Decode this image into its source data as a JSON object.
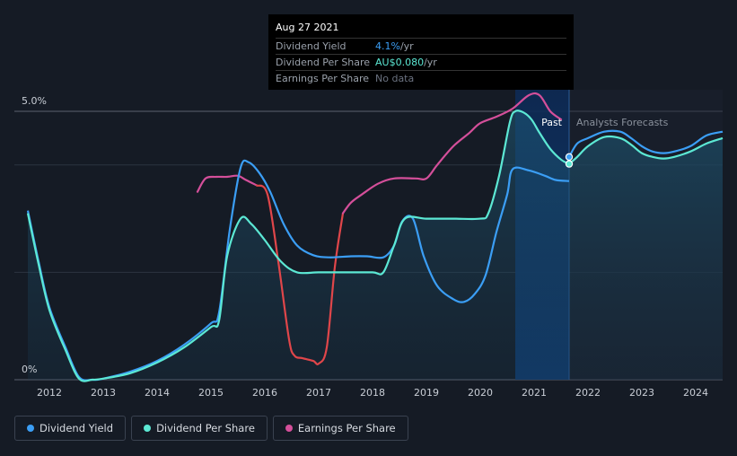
{
  "tooltip": {
    "date": "Aug 27 2021",
    "rows": [
      {
        "label": "Dividend Yield",
        "value": "4.1%",
        "unit": " /yr"
      },
      {
        "label": "Dividend Per Share",
        "value": "AU$0.080",
        "unit": " /yr"
      },
      {
        "label": "Earnings Per Share",
        "value": "No data",
        "unit": ""
      }
    ]
  },
  "regions": {
    "past": "Past",
    "forecast": "Analysts Forecasts"
  },
  "legend": [
    {
      "label": "Dividend Yield",
      "color": "#3b9ef5"
    },
    {
      "label": "Dividend Per Share",
      "color": "#5ce8d4"
    },
    {
      "label": "Earnings Per Share",
      "color": "#d44f9a"
    }
  ],
  "chart_data": {
    "type": "line",
    "xlim": [
      2011.35,
      2024.5
    ],
    "ylim": [
      0,
      5.0
    ],
    "y_tick_labels": [
      {
        "value": 5.0,
        "label": "5.0%"
      },
      {
        "value": 0,
        "label": "0%"
      }
    ],
    "x_tick_labels": [
      "2012",
      "2013",
      "2014",
      "2015",
      "2016",
      "2017",
      "2018",
      "2019",
      "2020",
      "2021",
      "2022",
      "2023",
      "2024"
    ],
    "past_end": 2021.65,
    "highlight_start": 2020.65,
    "series": [
      {
        "name": "Dividend Yield",
        "color": "#3b9ef5",
        "x": [
          2011.6,
          2011.8,
          2012.0,
          2012.3,
          2012.55,
          2012.8,
          2013.0,
          2013.5,
          2014.0,
          2014.5,
          2015.0,
          2015.15,
          2015.35,
          2015.55,
          2015.7,
          2015.9,
          2016.1,
          2016.35,
          2016.6,
          2016.9,
          2017.2,
          2017.6,
          2017.9,
          2018.2,
          2018.4,
          2018.55,
          2018.75,
          2018.95,
          2019.2,
          2019.5,
          2019.7,
          2019.9,
          2020.1,
          2020.3,
          2020.5,
          2020.6,
          2020.9,
          2021.2,
          2021.4,
          2021.65
        ],
        "y": [
          3.15,
          2.2,
          1.35,
          0.6,
          0.05,
          0.0,
          0.02,
          0.15,
          0.35,
          0.65,
          1.05,
          1.25,
          2.8,
          3.95,
          4.05,
          3.85,
          3.5,
          2.9,
          2.5,
          2.32,
          2.28,
          2.3,
          2.3,
          2.28,
          2.5,
          2.95,
          3.0,
          2.3,
          1.75,
          1.5,
          1.45,
          1.6,
          1.95,
          2.75,
          3.45,
          3.92,
          3.9,
          3.8,
          3.72,
          3.7
        ]
      },
      {
        "name": "Dividend Per Share",
        "color": "#5ce8d4",
        "x": [
          2011.6,
          2011.8,
          2012.0,
          2012.3,
          2012.55,
          2012.8,
          2013.0,
          2013.5,
          2014.0,
          2014.5,
          2015.0,
          2015.15,
          2015.3,
          2015.55,
          2015.75,
          2016.0,
          2016.3,
          2016.6,
          2017.0,
          2017.5,
          2018.0,
          2018.2,
          2018.4,
          2018.6,
          2019.0,
          2019.5,
          2020.0,
          2020.15,
          2020.35,
          2020.55,
          2020.65,
          2020.8,
          2020.95,
          2021.1,
          2021.3,
          2021.5,
          2021.65
        ],
        "y": [
          3.1,
          2.15,
          1.3,
          0.55,
          0.02,
          0.0,
          0.02,
          0.12,
          0.32,
          0.6,
          0.98,
          1.1,
          2.3,
          3.0,
          2.9,
          2.6,
          2.2,
          2.0,
          2.0,
          2.0,
          2.0,
          2.0,
          2.5,
          3.0,
          3.0,
          3.0,
          3.0,
          3.1,
          3.8,
          4.8,
          5.0,
          4.98,
          4.85,
          4.6,
          4.3,
          4.1,
          4.02
        ]
      },
      {
        "name": "Earnings Per Share",
        "color": "#d44f9a",
        "color_drop": "#e0464a",
        "x": [
          2014.75,
          2014.9,
          2015.1,
          2015.3,
          2015.5,
          2015.65,
          2015.85,
          2016.05,
          2016.25,
          2016.45,
          2016.55,
          2016.7,
          2016.9,
          2017.0,
          2017.15,
          2017.3,
          2017.45,
          2017.6,
          2017.8,
          2018.1,
          2018.4,
          2018.8,
          2019.0,
          2019.2,
          2019.5,
          2019.8,
          2020.0,
          2020.3,
          2020.6,
          2020.9,
          2021.1,
          2021.3,
          2021.5
        ],
        "y": [
          3.5,
          3.75,
          3.78,
          3.78,
          3.8,
          3.72,
          3.62,
          3.45,
          2.2,
          0.75,
          0.45,
          0.4,
          0.35,
          0.3,
          0.6,
          2.1,
          3.1,
          3.3,
          3.45,
          3.65,
          3.75,
          3.75,
          3.75,
          4.0,
          4.35,
          4.6,
          4.78,
          4.9,
          5.05,
          5.3,
          5.3,
          5.0,
          4.85
        ]
      },
      {
        "name": "Dividend Yield (forecast)",
        "color": "#3b9ef5",
        "x": [
          2021.65,
          2021.8,
          2022.0,
          2022.3,
          2022.6,
          2022.8,
          2023.0,
          2023.2,
          2023.4,
          2023.6,
          2023.9,
          2024.2,
          2024.5
        ],
        "y": [
          4.15,
          4.4,
          4.5,
          4.62,
          4.62,
          4.5,
          4.35,
          4.25,
          4.22,
          4.25,
          4.35,
          4.55,
          4.62
        ]
      },
      {
        "name": "Dividend Per Share (forecast)",
        "color": "#5ce8d4",
        "x": [
          2021.65,
          2021.8,
          2022.0,
          2022.3,
          2022.6,
          2022.8,
          2023.0,
          2023.2,
          2023.4,
          2023.6,
          2023.9,
          2024.2,
          2024.5
        ],
        "y": [
          4.02,
          4.15,
          4.35,
          4.52,
          4.5,
          4.38,
          4.22,
          4.15,
          4.12,
          4.15,
          4.25,
          4.4,
          4.5
        ]
      }
    ]
  }
}
